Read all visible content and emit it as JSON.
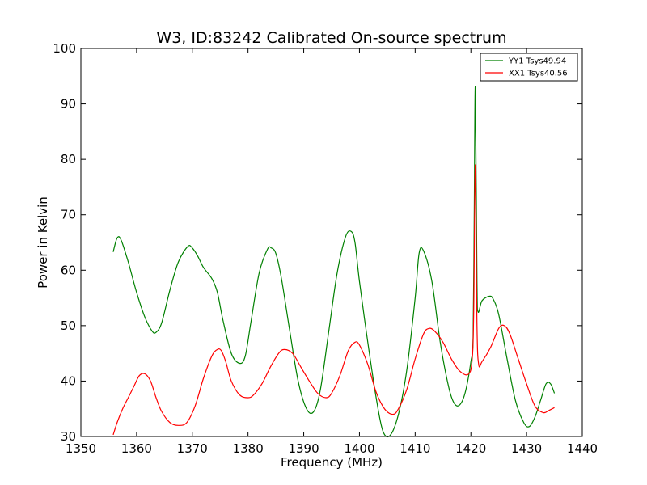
{
  "chart_data": {
    "type": "line",
    "title": "W3, ID:83242 Calibrated On-source spectrum",
    "xlabel": "Frequency (MHz)",
    "ylabel": "Power in Kelvin",
    "xlim": [
      1350,
      1440
    ],
    "ylim": [
      30,
      100
    ],
    "xticks": [
      1350,
      1360,
      1370,
      1380,
      1390,
      1400,
      1410,
      1420,
      1430,
      1440
    ],
    "yticks": [
      30,
      40,
      50,
      60,
      70,
      80,
      90,
      100
    ],
    "grid": false,
    "legend_position": "top-right",
    "series": [
      {
        "name": "YY1 Tsys49.94",
        "color": "#008000",
        "x": [
          1355.8,
          1356.5,
          1357.2,
          1358.5,
          1360,
          1361.5,
          1362.8,
          1363.5,
          1364.5,
          1366,
          1367.5,
          1369.2,
          1370,
          1371,
          1372,
          1373.5,
          1374.5,
          1375.5,
          1377,
          1378.5,
          1379.5,
          1380.5,
          1382,
          1383.5,
          1384.2,
          1385,
          1386,
          1387.5,
          1389,
          1390.5,
          1391.8,
          1393,
          1394.5,
          1396,
          1397.5,
          1398.5,
          1399.2,
          1400,
          1401.5,
          1403,
          1404.2,
          1405.5,
          1407,
          1408.5,
          1410,
          1410.7,
          1411.5,
          1413,
          1414.5,
          1416,
          1417,
          1418,
          1419,
          1420,
          1420.4,
          1420.6,
          1420.8,
          1421.1,
          1421.3,
          1422,
          1423.3,
          1424,
          1425,
          1426.5,
          1428,
          1429.5,
          1430.5,
          1431.5,
          1432.5,
          1433.5,
          1434.3,
          1435
        ],
        "values": [
          63.3,
          65.8,
          65.5,
          61.5,
          56,
          51.5,
          49,
          48.8,
          50.5,
          56.5,
          61.5,
          64.3,
          64,
          62.5,
          60.5,
          58.5,
          56,
          51,
          45,
          43.2,
          44.5,
          50.5,
          59.5,
          63.8,
          64,
          63,
          58.5,
          49,
          40,
          35,
          34.5,
          38.5,
          49,
          59.5,
          66,
          67,
          65,
          58,
          47,
          37,
          31,
          30.2,
          34,
          42,
          55,
          63,
          63.5,
          58,
          47,
          39,
          36,
          35.7,
          38,
          43.5,
          48,
          70,
          93,
          58,
          52.5,
          54.5,
          55.3,
          54.8,
          52,
          44,
          36.5,
          32.5,
          31.8,
          33.5,
          36.5,
          39.5,
          39.5,
          37.8
        ]
      },
      {
        "name": "XX1 Tsys40.56",
        "color": "#ff0000",
        "x": [
          1355.8,
          1356.5,
          1357.5,
          1358.5,
          1359.5,
          1360.5,
          1361.5,
          1362.5,
          1363.5,
          1364.5,
          1366,
          1367.5,
          1369,
          1370.5,
          1372,
          1373.5,
          1374.5,
          1375.2,
          1376,
          1377,
          1378.5,
          1380,
          1381,
          1382.5,
          1384,
          1385.5,
          1386.5,
          1388,
          1389.5,
          1391,
          1392.5,
          1394,
          1395,
          1396.5,
          1398,
          1399.2,
          1400,
          1401.5,
          1403,
          1404.5,
          1406,
          1407,
          1408.5,
          1410,
          1411.5,
          1412.5,
          1413.5,
          1415,
          1416.5,
          1418,
          1419.5,
          1420.2,
          1420.5,
          1420.8,
          1421.1,
          1421.4,
          1422,
          1423.5,
          1425,
          1426,
          1427,
          1428.5,
          1430,
          1431.5,
          1433,
          1434,
          1435
        ],
        "values": [
          30.3,
          32.5,
          35,
          37,
          39,
          41,
          41.3,
          40,
          37,
          34.5,
          32.5,
          32,
          32.5,
          35.5,
          40.5,
          44.5,
          45.7,
          45.5,
          43.5,
          40,
          37.5,
          37,
          37.5,
          39.5,
          42.5,
          45,
          45.7,
          45,
          42.5,
          40,
          37.8,
          37,
          37.8,
          41,
          45.5,
          47,
          46.5,
          43,
          38,
          35,
          34,
          35,
          38.5,
          44,
          48.5,
          49.5,
          49,
          47,
          44,
          41.8,
          41.2,
          43.5,
          52,
          79,
          50,
          43,
          43.5,
          46,
          49.5,
          50,
          48.5,
          44,
          39.5,
          35.5,
          34.3,
          34.7,
          35.2
        ]
      }
    ]
  }
}
